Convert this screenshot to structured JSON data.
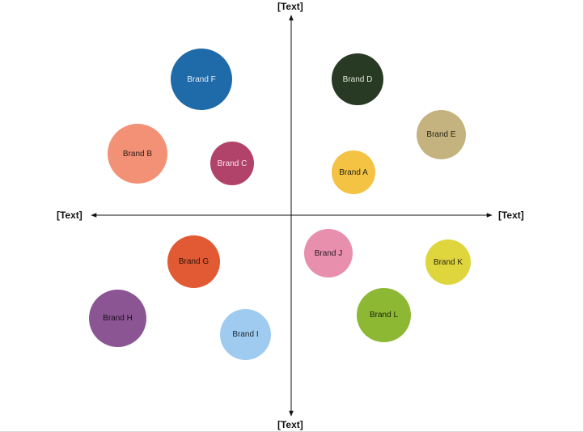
{
  "axes": {
    "top": "[Text]",
    "bottom": "[Text]",
    "left": "[Text]",
    "right": "[Text]"
  },
  "brands": [
    {
      "label": "Brand F",
      "color": "#1f6aa8",
      "text_color": "#e8eef6"
    },
    {
      "label": "Brand D",
      "color": "#293a24",
      "text_color": "#e0e6dc"
    },
    {
      "label": "Brand E",
      "color": "#c5b37f",
      "text_color": "#2a2418"
    },
    {
      "label": "Brand B",
      "color": "#f29175",
      "text_color": "#2a1a12"
    },
    {
      "label": "Brand C",
      "color": "#b1436a",
      "text_color": "#f6e4ec"
    },
    {
      "label": "Brand A",
      "color": "#f4c344",
      "text_color": "#2a2410"
    },
    {
      "label": "Brand G",
      "color": "#e25a33",
      "text_color": "#2a1208"
    },
    {
      "label": "Brand J",
      "color": "#e88fae",
      "text_color": "#2a1620"
    },
    {
      "label": "Brand K",
      "color": "#dfd53d",
      "text_color": "#2a2810"
    },
    {
      "label": "Brand H",
      "color": "#8b5594",
      "text_color": "#1a0f1c"
    },
    {
      "label": "Brand I",
      "color": "#9fcbf1",
      "text_color": "#1a2430"
    },
    {
      "label": "Brand L",
      "color": "#8db834",
      "text_color": "#1a240a"
    }
  ]
}
